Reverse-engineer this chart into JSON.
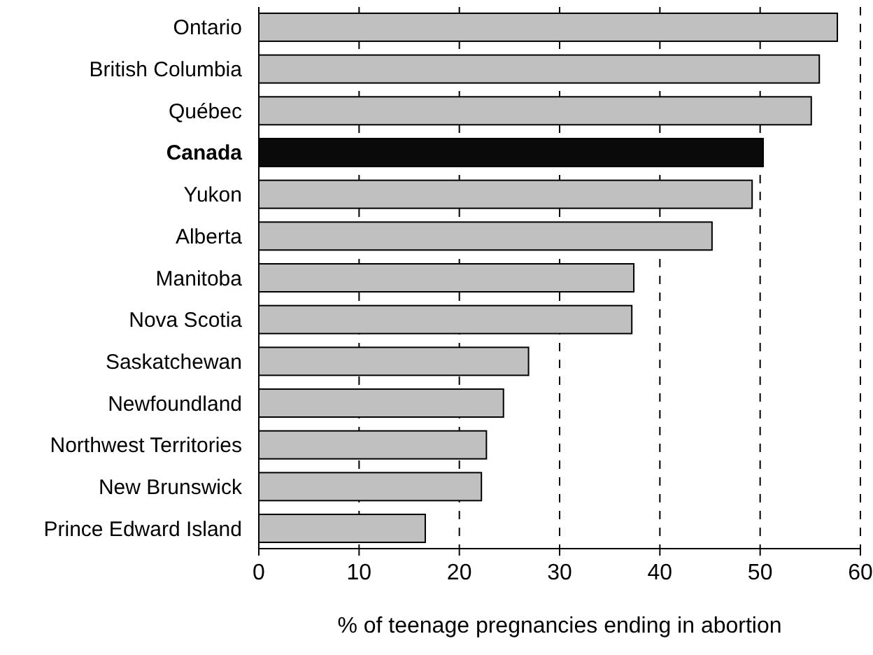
{
  "chart_data": {
    "type": "bar",
    "orientation": "horizontal",
    "xlabel": "% of teenage pregnancies ending in abortion",
    "categories": [
      "Ontario",
      "British Columbia",
      "Québec",
      "Canada",
      "Yukon",
      "Alberta",
      "Manitoba",
      "Nova Scotia",
      "Saskatchewan",
      "Newfoundland",
      "Northwest Territories",
      "New Brunswick",
      "Prince Edward Island"
    ],
    "values": [
      57.7,
      55.9,
      55.1,
      50.3,
      49.2,
      45.2,
      37.4,
      37.2,
      26.9,
      24.4,
      22.7,
      22.2,
      16.6
    ],
    "colors": [
      "#c0c0c0",
      "#c0c0c0",
      "#c0c0c0",
      "#0a0a0a",
      "#c0c0c0",
      "#c0c0c0",
      "#c0c0c0",
      "#c0c0c0",
      "#c0c0c0",
      "#c0c0c0",
      "#c0c0c0",
      "#c0c0c0",
      "#c0c0c0"
    ],
    "xlim": [
      0,
      60
    ],
    "xticks": [
      0,
      10,
      20,
      30,
      40,
      50,
      60
    ],
    "grid": "x"
  }
}
